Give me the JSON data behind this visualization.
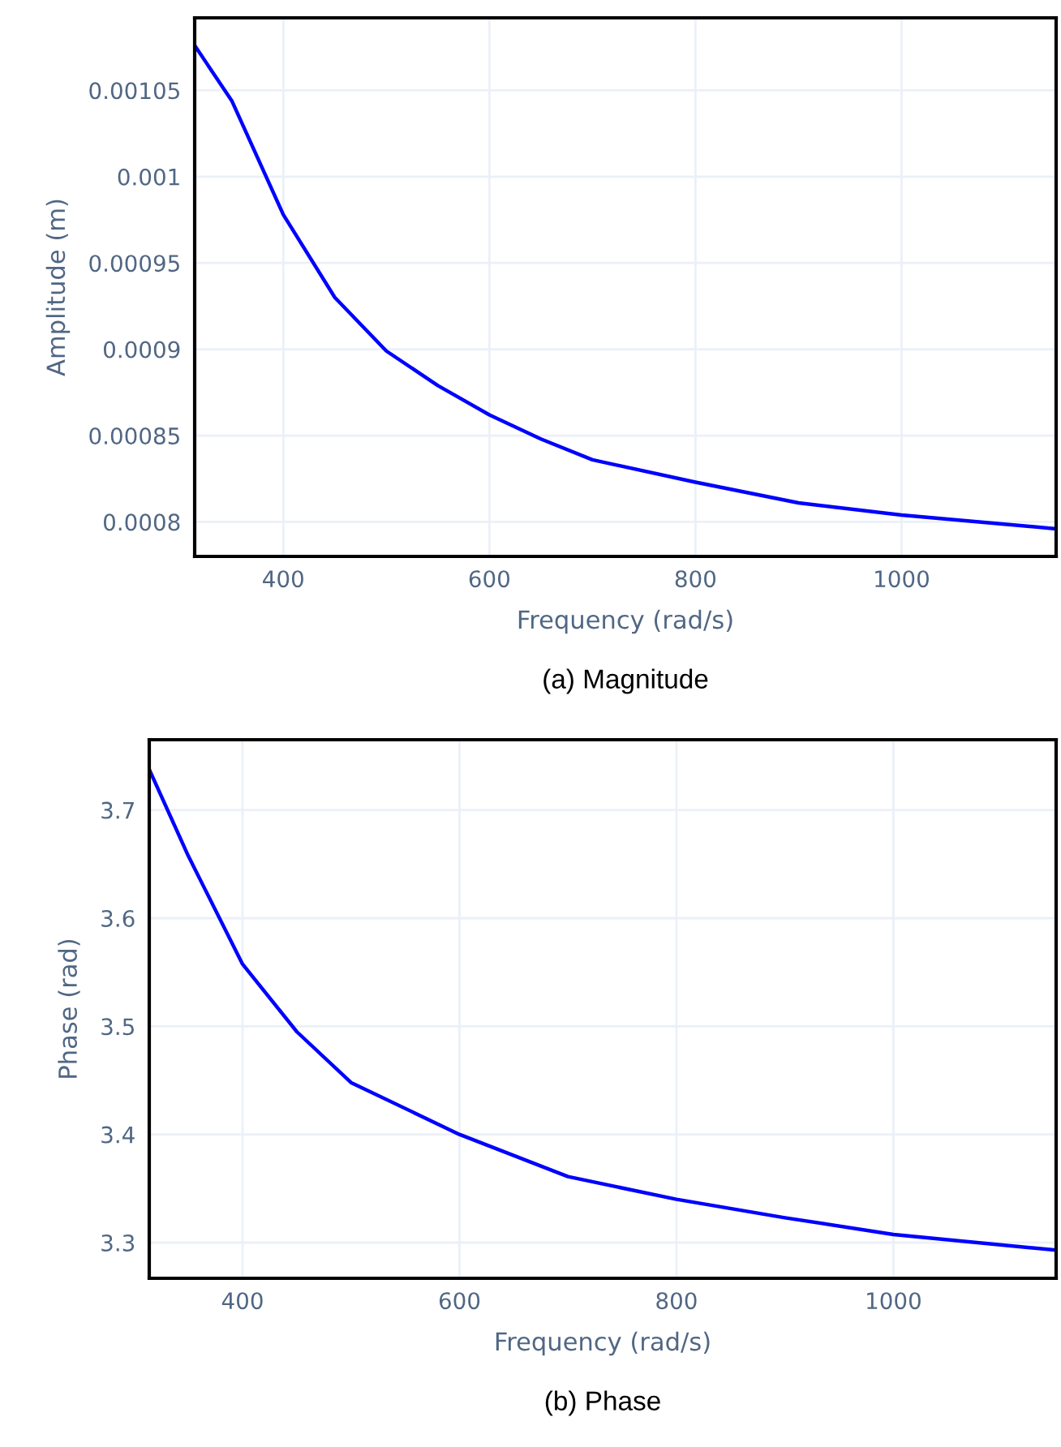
{
  "chart_data": [
    {
      "type": "line",
      "title": "(a) Magnitude",
      "xlabel": "Frequency (rad/s)",
      "ylabel": "Amplitude (m)",
      "x": [
        314,
        350,
        400,
        450,
        500,
        550,
        600,
        650,
        700,
        800,
        900,
        1000,
        1150
      ],
      "series": [
        {
          "color": "#0000ff",
          "values": [
            0.001076,
            0.001044,
            0.000978,
            0.00093,
            0.000899,
            0.000879,
            0.000862,
            0.000848,
            0.000836,
            0.000823,
            0.000811,
            0.000804,
            0.000796
          ]
        }
      ],
      "xlim": [
        314,
        1150
      ],
      "xticks": [
        400,
        600,
        800,
        1000
      ],
      "ylim": [
        0.00078,
        0.001092
      ],
      "yticks": [
        0.0008,
        0.00085,
        0.0009,
        0.00095,
        0.001,
        0.00105
      ],
      "grid": true,
      "line_style": "solid",
      "marker": "none"
    },
    {
      "type": "line",
      "title": "(b) Phase",
      "xlabel": "Frequency (rad/s)",
      "ylabel": "Phase (rad)",
      "x": [
        314,
        350,
        400,
        450,
        500,
        600,
        700,
        800,
        900,
        1000,
        1150
      ],
      "series": [
        {
          "color": "#0000ff",
          "values": [
            3.7375,
            3.6575,
            3.5575,
            3.495,
            3.448,
            3.4,
            3.361,
            3.34,
            3.323,
            3.3075,
            3.293
          ]
        }
      ],
      "xlim": [
        314,
        1150
      ],
      "xticks": [
        400,
        600,
        800,
        1000
      ],
      "ylim": [
        3.267,
        3.765
      ],
      "yticks": [
        3.3,
        3.4,
        3.5,
        3.6,
        3.7
      ],
      "grid": true,
      "line_style": "solid",
      "marker": "none"
    }
  ]
}
